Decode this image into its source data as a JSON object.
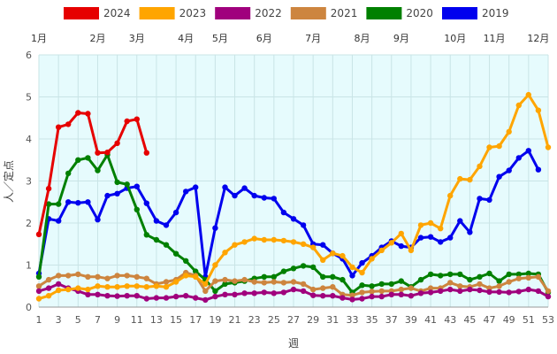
{
  "chart_data": {
    "type": "line",
    "title": "",
    "xlabel": "週",
    "ylabel": "人／定点",
    "xlim": [
      1,
      53
    ],
    "ylim": [
      0,
      6
    ],
    "x_ticks": [
      1,
      3,
      5,
      7,
      9,
      11,
      13,
      15,
      17,
      19,
      21,
      23,
      25,
      27,
      29,
      31,
      33,
      35,
      37,
      39,
      41,
      43,
      45,
      47,
      49,
      51,
      53
    ],
    "y_ticks": [
      0,
      1,
      2,
      3,
      4,
      5,
      6
    ],
    "months": [
      {
        "label": "1月",
        "week": 1
      },
      {
        "label": "2月",
        "week": 7
      },
      {
        "label": "3月",
        "week": 11
      },
      {
        "label": "4月",
        "week": 16
      },
      {
        "label": "5月",
        "week": 19.5
      },
      {
        "label": "6月",
        "week": 24
      },
      {
        "label": "7月",
        "week": 29
      },
      {
        "label": "8月",
        "week": 34
      },
      {
        "label": "9月",
        "week": 38
      },
      {
        "label": "10月",
        "week": 43.5
      },
      {
        "label": "11月",
        "week": 47.5
      },
      {
        "label": "12月",
        "week": 52
      }
    ],
    "grid": true,
    "legend_position": "top",
    "series": [
      {
        "name": "2024",
        "color": "#e60000",
        "start_week": 1,
        "values": [
          1.73,
          2.82,
          4.28,
          4.35,
          4.62,
          4.6,
          3.67,
          3.68,
          3.9,
          4.42,
          4.47,
          3.67
        ]
      },
      {
        "name": "2023",
        "color": "#ffa500",
        "start_week": 1,
        "values": [
          0.2,
          0.27,
          0.4,
          0.42,
          0.45,
          0.42,
          0.5,
          0.48,
          0.48,
          0.5,
          0.5,
          0.48,
          0.5,
          0.48,
          0.6,
          0.75,
          0.72,
          0.55,
          1.0,
          1.3,
          1.48,
          1.55,
          1.63,
          1.6,
          1.6,
          1.58,
          1.55,
          1.5,
          1.42,
          1.12,
          1.28,
          1.22,
          0.95,
          0.82,
          1.15,
          1.35,
          1.53,
          1.75,
          1.35,
          1.95,
          2.0,
          1.87,
          2.65,
          3.05,
          3.03,
          3.35,
          3.8,
          3.83,
          4.17,
          4.8,
          5.05,
          4.68,
          3.8
        ]
      },
      {
        "name": "2022",
        "color": "#a0007d",
        "start_week": 1,
        "values": [
          0.38,
          0.45,
          0.55,
          0.45,
          0.38,
          0.3,
          0.3,
          0.27,
          0.26,
          0.27,
          0.27,
          0.2,
          0.22,
          0.22,
          0.25,
          0.27,
          0.22,
          0.17,
          0.25,
          0.3,
          0.3,
          0.33,
          0.33,
          0.35,
          0.33,
          0.35,
          0.42,
          0.38,
          0.28,
          0.27,
          0.27,
          0.22,
          0.18,
          0.2,
          0.25,
          0.25,
          0.3,
          0.3,
          0.27,
          0.33,
          0.35,
          0.38,
          0.42,
          0.38,
          0.42,
          0.4,
          0.36,
          0.36,
          0.35,
          0.37,
          0.42,
          0.38,
          0.25
        ]
      },
      {
        "name": "2021",
        "color": "#cd853f",
        "start_week": 1,
        "values": [
          0.5,
          0.65,
          0.75,
          0.75,
          0.78,
          0.72,
          0.72,
          0.68,
          0.75,
          0.75,
          0.72,
          0.68,
          0.55,
          0.6,
          0.65,
          0.82,
          0.75,
          0.38,
          0.62,
          0.65,
          0.62,
          0.65,
          0.6,
          0.58,
          0.6,
          0.58,
          0.6,
          0.55,
          0.42,
          0.45,
          0.48,
          0.3,
          0.28,
          0.35,
          0.37,
          0.38,
          0.38,
          0.42,
          0.45,
          0.38,
          0.45,
          0.45,
          0.58,
          0.5,
          0.48,
          0.55,
          0.45,
          0.5,
          0.6,
          0.68,
          0.7,
          0.72,
          0.38
        ]
      },
      {
        "name": "2020",
        "color": "#008000",
        "start_week": 1,
        "values": [
          0.72,
          2.45,
          2.45,
          3.18,
          3.5,
          3.55,
          3.25,
          3.62,
          2.97,
          2.92,
          2.32,
          1.72,
          1.6,
          1.48,
          1.27,
          1.1,
          0.85,
          0.65,
          0.38,
          0.55,
          0.58,
          0.62,
          0.68,
          0.72,
          0.72,
          0.85,
          0.92,
          0.98,
          0.95,
          0.72,
          0.72,
          0.65,
          0.35,
          0.52,
          0.5,
          0.55,
          0.55,
          0.62,
          0.48,
          0.65,
          0.78,
          0.75,
          0.78,
          0.78,
          0.65,
          0.72,
          0.8,
          0.62,
          0.78,
          0.78,
          0.8,
          0.78,
          0.35
        ]
      },
      {
        "name": "2019",
        "color": "#0000ee",
        "start_week": 1,
        "values": [
          0.8,
          2.1,
          2.05,
          2.5,
          2.48,
          2.5,
          2.08,
          2.65,
          2.7,
          2.83,
          2.87,
          2.47,
          2.05,
          1.95,
          2.25,
          2.75,
          2.85,
          0.72,
          1.88,
          2.85,
          2.65,
          2.83,
          2.65,
          2.6,
          2.58,
          2.25,
          2.1,
          1.95,
          1.5,
          1.48,
          1.28,
          1.15,
          0.75,
          1.05,
          1.22,
          1.42,
          1.57,
          1.45,
          1.42,
          1.65,
          1.67,
          1.55,
          1.65,
          2.05,
          1.78,
          2.58,
          2.55,
          3.1,
          3.25,
          3.55,
          3.72,
          3.27
        ]
      }
    ]
  }
}
